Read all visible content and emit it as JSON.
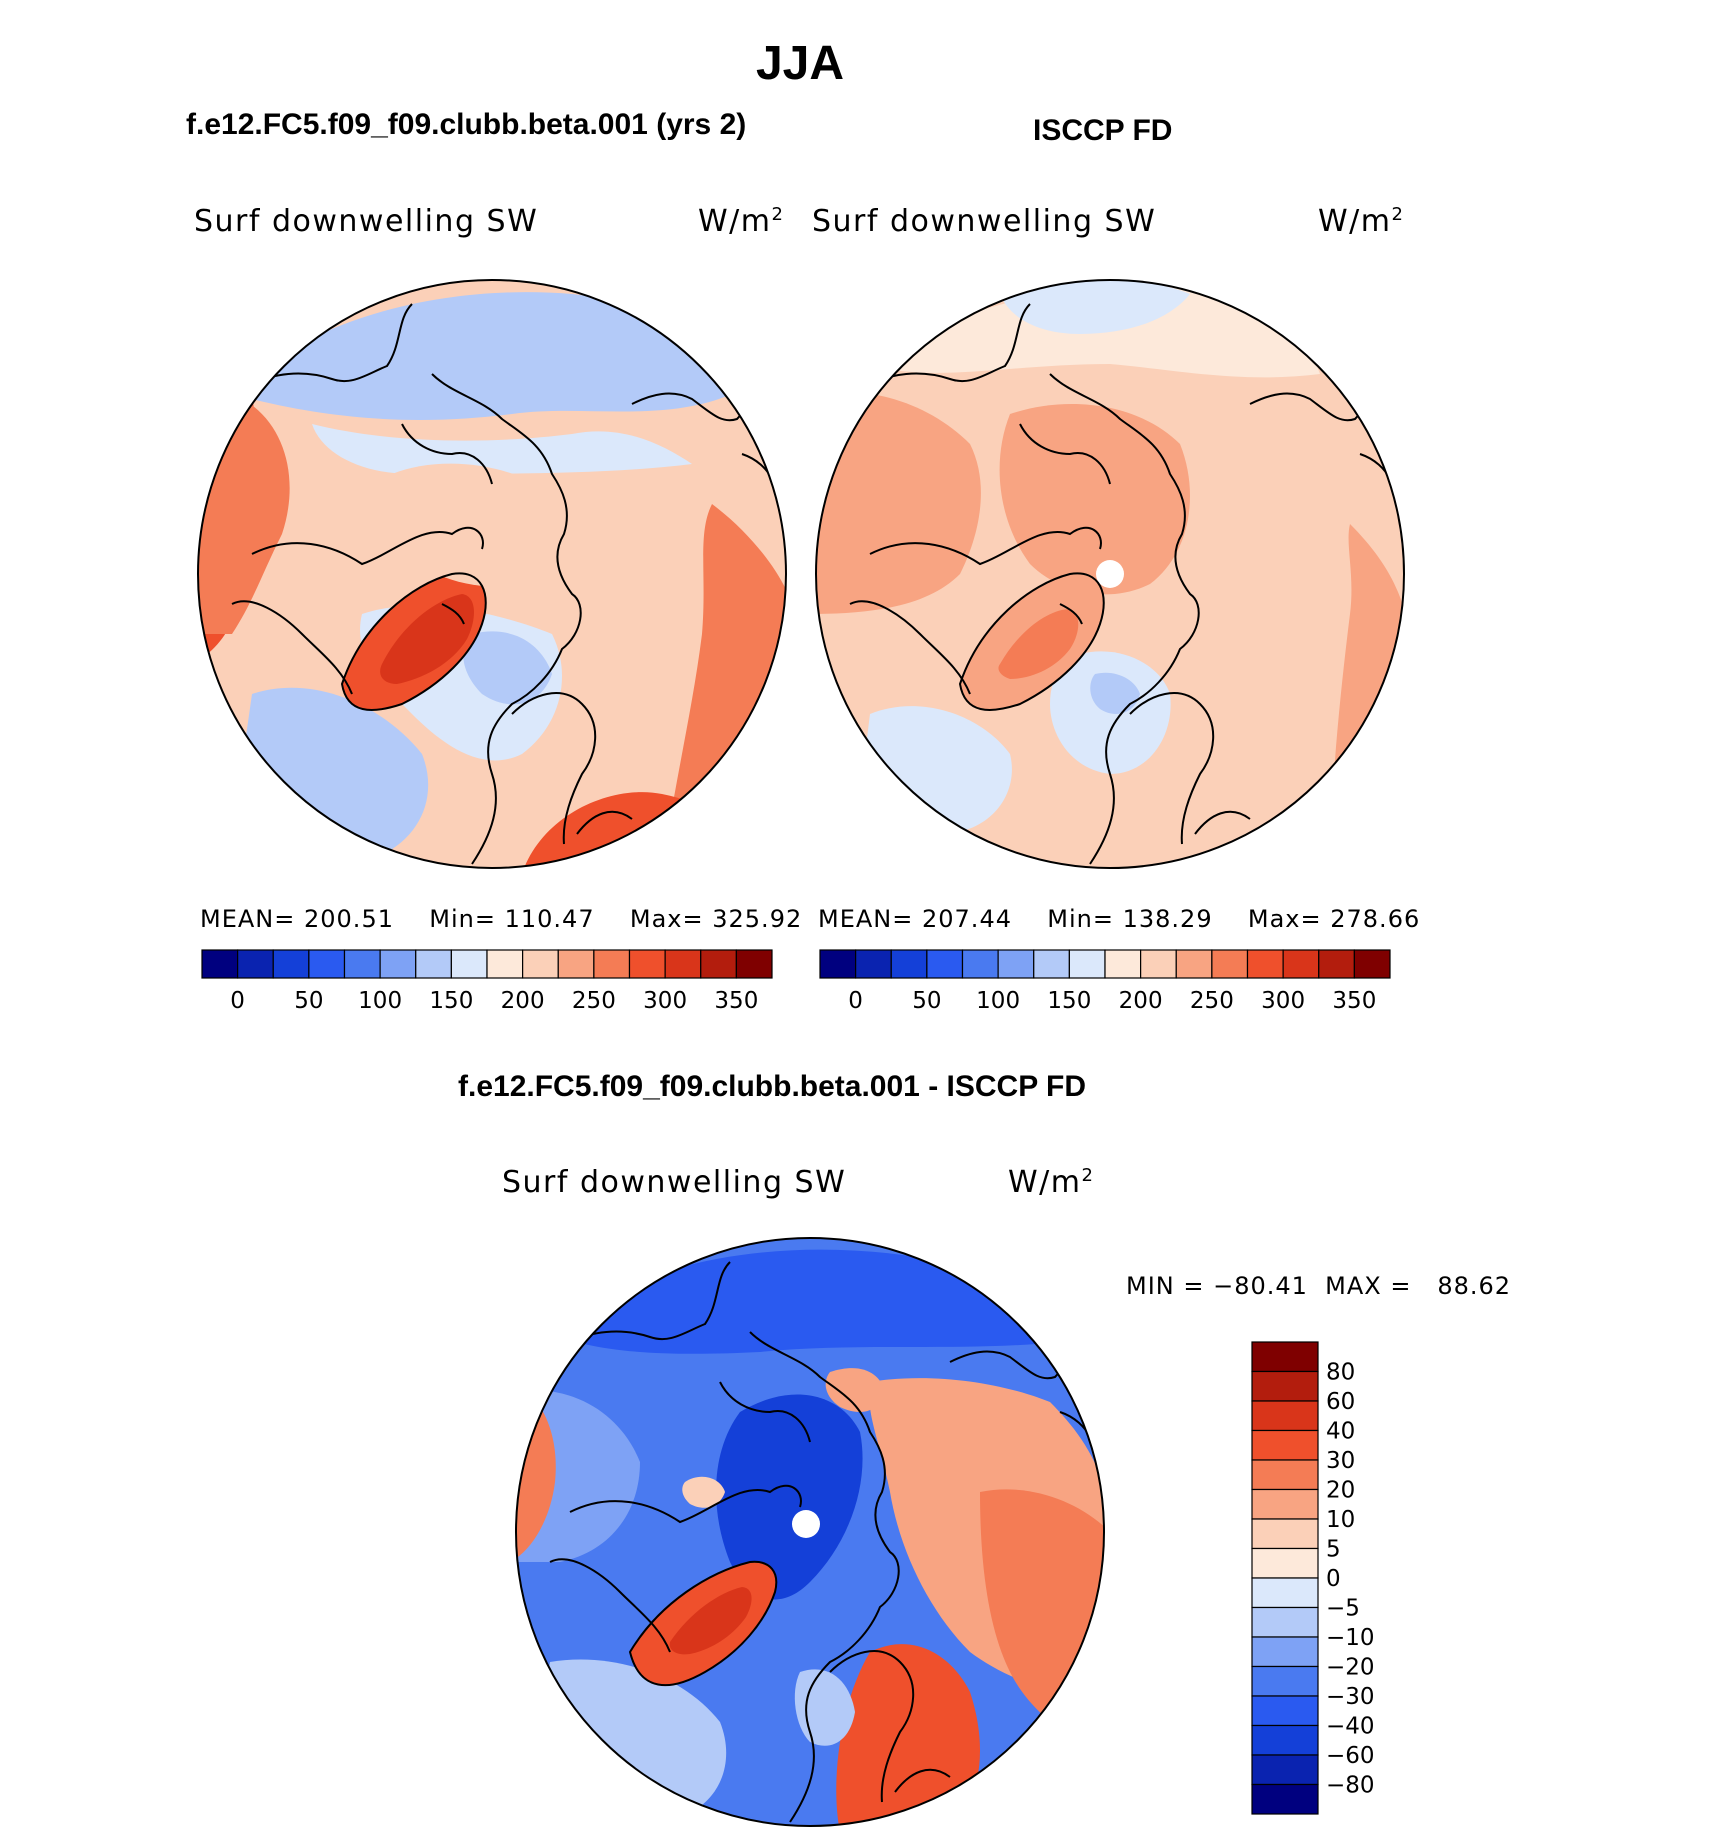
{
  "page": {
    "title": "JJA",
    "left_case": "f.e12.FC5.f09_f09.clubb.beta.001 (yrs 2)",
    "right_case": "ISCCP FD",
    "diff_case": "f.e12.FC5.f09_f09.clubb.beta.001 - ISCCP FD"
  },
  "panels": {
    "left": {
      "variable": "Surf downwelling SW",
      "units": "W/m",
      "units_sup": "2",
      "stats": {
        "mean_label": "MEAN=",
        "mean": "200.51",
        "min_label": "Min=",
        "min": "110.47",
        "max_label": "Max=",
        "max": "325.92"
      }
    },
    "right": {
      "variable": "Surf downwelling SW",
      "units": "W/m",
      "units_sup": "2",
      "stats": {
        "mean_label": "MEAN=",
        "mean": "207.44",
        "min_label": "Min=",
        "min": "138.29",
        "max_label": "Max=",
        "max": "278.66"
      }
    },
    "diff": {
      "variable": "Surf downwelling SW",
      "units": "W/m",
      "units_sup": "2",
      "minmax": "MIN = −80.41  MAX =   88.62"
    }
  },
  "colorbars": {
    "abs": {
      "colors": [
        "#00007f",
        "#0a23b0",
        "#1440d8",
        "#2a5af0",
        "#4a7af0",
        "#7ea2f5",
        "#b3caf8",
        "#dbe8fb",
        "#fde9da",
        "#fbd0b8",
        "#f8a482",
        "#f47c55",
        "#ef502c",
        "#d9351a",
        "#b31d0d",
        "#7f0000"
      ],
      "labels": [
        "0",
        "50",
        "100",
        "150",
        "200",
        "250",
        "300",
        "350"
      ]
    },
    "diff": {
      "colors": [
        "#7f0000",
        "#b31d0d",
        "#d9351a",
        "#ef502c",
        "#f47c55",
        "#f8a482",
        "#fbd0b8",
        "#fde9da",
        "#dbe8fb",
        "#b3caf8",
        "#7ea2f5",
        "#4a7af0",
        "#2a5af0",
        "#1440d8",
        "#0a23b0",
        "#00007f"
      ],
      "labels": [
        "80",
        "60",
        "40",
        "30",
        "20",
        "10",
        "5",
        "0",
        "−5",
        "−10",
        "−20",
        "−30",
        "−40",
        "−60",
        "−80"
      ]
    }
  },
  "map_colors": {
    "deep_red": "#d9351a",
    "red": "#ef502c",
    "orange": "#f47c55",
    "salmon": "#f8a482",
    "peach": "#fbd0b8",
    "cream": "#fde9da",
    "pale_blue": "#dbe8fb",
    "light_blue": "#b3caf8",
    "mid_blue": "#7ea2f5",
    "blue": "#4a7af0",
    "strong_blue": "#2a5af0",
    "deep_blue": "#1440d8"
  }
}
